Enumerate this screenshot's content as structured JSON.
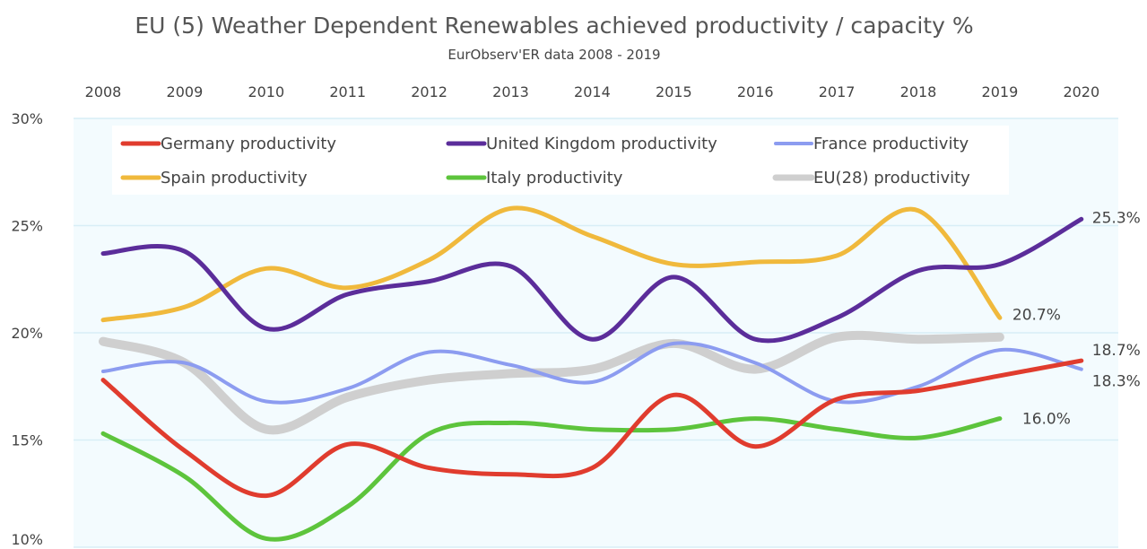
{
  "chart_data": {
    "type": "line",
    "title": "EU (5) Weather Dependent Renewables achieved productivity / capacity %",
    "subtitle": "EurObserv'ER data  2008 - 2019",
    "x": [
      2008,
      2009,
      2010,
      2011,
      2012,
      2013,
      2014,
      2015,
      2016,
      2017,
      2018,
      2019,
      2020
    ],
    "x_tick_labels": [
      "2008",
      "2009",
      "2010",
      "2011",
      "2012",
      "2013",
      "2014",
      "2015",
      "2016",
      "2017",
      "2018",
      "2019",
      "2020"
    ],
    "y_tick_labels": [
      "30%",
      "25%",
      "20%",
      "15%",
      "10%"
    ],
    "y_ticks": [
      30,
      25,
      20,
      15,
      10
    ],
    "ylim": [
      10,
      30
    ],
    "xaxis_position": "top",
    "grid": true,
    "legend_position": "top",
    "series": [
      {
        "name": "Germany productivity",
        "color": "#e03c2e",
        "width": 5,
        "x": [
          2008,
          2009,
          2010,
          2011,
          2012,
          2013,
          2014,
          2015,
          2016,
          2017,
          2018,
          2019,
          2020
        ],
        "values": [
          17.8,
          14.5,
          12.4,
          14.8,
          13.7,
          13.4,
          13.7,
          17.1,
          14.7,
          16.9,
          17.3,
          18.0,
          18.7
        ]
      },
      {
        "name": "United Kingdom productivity",
        "color": "#5b2d9a",
        "width": 5,
        "x": [
          2008,
          2009,
          2010,
          2011,
          2012,
          2013,
          2014,
          2015,
          2016,
          2017,
          2018,
          2019,
          2020
        ],
        "values": [
          23.7,
          23.8,
          20.2,
          21.8,
          22.4,
          23.1,
          19.7,
          22.6,
          19.7,
          20.7,
          22.9,
          23.2,
          25.3
        ]
      },
      {
        "name": "France productivity",
        "color": "#8c9cf0",
        "width": 4,
        "x": [
          2008,
          2009,
          2010,
          2011,
          2012,
          2013,
          2014,
          2015,
          2016,
          2017,
          2018,
          2019,
          2020
        ],
        "values": [
          18.2,
          18.6,
          16.8,
          17.4,
          19.1,
          18.5,
          17.7,
          19.5,
          18.6,
          16.8,
          17.5,
          19.2,
          18.3
        ]
      },
      {
        "name": "Spain productivity",
        "color": "#f0b93c",
        "width": 5,
        "x": [
          2008,
          2009,
          2010,
          2011,
          2012,
          2013,
          2014,
          2015,
          2016,
          2017,
          2018,
          2019
        ],
        "values": [
          20.6,
          21.2,
          23.0,
          22.1,
          23.4,
          25.8,
          24.5,
          23.2,
          23.3,
          23.6,
          25.7,
          20.7
        ]
      },
      {
        "name": "Italy productivity",
        "color": "#5dc43c",
        "width": 5,
        "x": [
          2008,
          2009,
          2010,
          2011,
          2012,
          2013,
          2014,
          2015,
          2016,
          2017,
          2018,
          2019
        ],
        "values": [
          15.3,
          13.3,
          10.4,
          11.9,
          15.3,
          15.8,
          15.5,
          15.5,
          16.0,
          15.5,
          15.1,
          16.0
        ]
      },
      {
        "name": "EU(28) productivity",
        "color": "#cfcfcf",
        "width": 10,
        "x": [
          2008,
          2009,
          2010,
          2011,
          2012,
          2013,
          2014,
          2015,
          2016,
          2017,
          2018,
          2019
        ],
        "values": [
          19.6,
          18.6,
          15.5,
          17.0,
          17.8,
          18.1,
          18.3,
          19.5,
          18.3,
          19.8,
          19.7,
          19.8
        ]
      }
    ],
    "end_labels": [
      {
        "series": "United Kingdom productivity",
        "text": "25.3%"
      },
      {
        "series": "Spain productivity",
        "text": "20.7%"
      },
      {
        "series": "Germany productivity",
        "text": "18.7%"
      },
      {
        "series": "France productivity",
        "text": "18.3%"
      },
      {
        "series": "Italy productivity",
        "text": "16.0%"
      }
    ]
  }
}
